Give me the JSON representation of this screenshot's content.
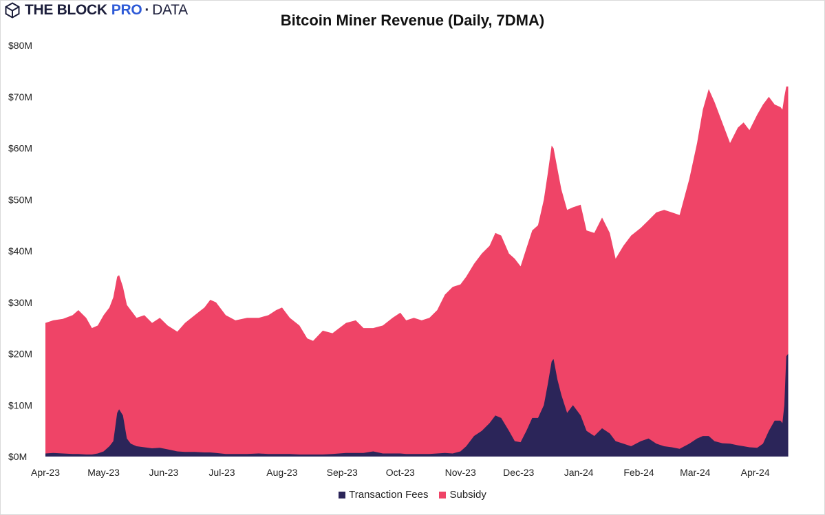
{
  "brand": {
    "name": "THE BLOCK",
    "pro": "PRO",
    "dot": "·",
    "data": "DATA",
    "icon": "hexagon-cube-icon"
  },
  "chart_data": {
    "type": "area",
    "stacked": true,
    "title": "Bitcoin Miner Revenue (Daily, 7DMA)",
    "xlabel": "",
    "ylabel": "",
    "ylim": [
      0,
      80
    ],
    "y_unit": "$M",
    "y_ticks": [
      "$0M",
      "$10M",
      "$20M",
      "$30M",
      "$40M",
      "$50M",
      "$60M",
      "$70M",
      "$80M"
    ],
    "x_ticks": [
      "Apr-23",
      "May-23",
      "Jun-23",
      "Jul-23",
      "Aug-23",
      "Sep-23",
      "Oct-23",
      "Nov-23",
      "Dec-23",
      "Jan-24",
      "Feb-24",
      "Mar-24",
      "Apr-24"
    ],
    "x_range": [
      "2023-04-01",
      "2024-04-21"
    ],
    "legend_position": "bottom",
    "grid": false,
    "points": [
      [
        "2023-04-01",
        26.0,
        0.6
      ],
      [
        "2023-04-05",
        26.5,
        0.7
      ],
      [
        "2023-04-10",
        26.8,
        0.6
      ],
      [
        "2023-04-15",
        27.5,
        0.5
      ],
      [
        "2023-04-18",
        28.5,
        0.5
      ],
      [
        "2023-04-22",
        27.0,
        0.4
      ],
      [
        "2023-04-25",
        25.0,
        0.4
      ],
      [
        "2023-04-28",
        25.5,
        0.6
      ],
      [
        "2023-05-01",
        27.5,
        1.0
      ],
      [
        "2023-05-04",
        29.0,
        2.0
      ],
      [
        "2023-05-06",
        31.0,
        3.0
      ],
      [
        "2023-05-08",
        35.0,
        8.5
      ],
      [
        "2023-05-09",
        35.3,
        9.2
      ],
      [
        "2023-05-11",
        33.0,
        8.0
      ],
      [
        "2023-05-13",
        29.5,
        3.5
      ],
      [
        "2023-05-15",
        28.5,
        2.5
      ],
      [
        "2023-05-18",
        27.0,
        2.0
      ],
      [
        "2023-05-22",
        27.5,
        1.8
      ],
      [
        "2023-05-26",
        26.0,
        1.6
      ],
      [
        "2023-05-30",
        27.0,
        1.7
      ],
      [
        "2023-06-03",
        25.5,
        1.4
      ],
      [
        "2023-06-08",
        24.3,
        1.0
      ],
      [
        "2023-06-12",
        26.0,
        0.9
      ],
      [
        "2023-06-17",
        27.5,
        0.9
      ],
      [
        "2023-06-22",
        29.0,
        0.8
      ],
      [
        "2023-06-25",
        30.5,
        0.8
      ],
      [
        "2023-06-28",
        30.0,
        0.7
      ],
      [
        "2023-07-03",
        27.5,
        0.5
      ],
      [
        "2023-07-08",
        26.5,
        0.5
      ],
      [
        "2023-07-14",
        27.0,
        0.5
      ],
      [
        "2023-07-20",
        27.0,
        0.6
      ],
      [
        "2023-07-25",
        27.5,
        0.5
      ],
      [
        "2023-07-29",
        28.5,
        0.5
      ],
      [
        "2023-08-01",
        29.0,
        0.5
      ],
      [
        "2023-08-05",
        27.0,
        0.5
      ],
      [
        "2023-08-10",
        25.5,
        0.4
      ],
      [
        "2023-08-14",
        23.0,
        0.4
      ],
      [
        "2023-08-17",
        22.5,
        0.4
      ],
      [
        "2023-08-22",
        24.5,
        0.4
      ],
      [
        "2023-08-27",
        24.0,
        0.5
      ],
      [
        "2023-09-03",
        26.0,
        0.7
      ],
      [
        "2023-09-08",
        26.5,
        0.7
      ],
      [
        "2023-09-12",
        25.0,
        0.7
      ],
      [
        "2023-09-17",
        25.0,
        1.0
      ],
      [
        "2023-09-22",
        25.5,
        0.6
      ],
      [
        "2023-09-27",
        27.0,
        0.6
      ],
      [
        "2023-10-01",
        28.0,
        0.6
      ],
      [
        "2023-10-04",
        26.5,
        0.5
      ],
      [
        "2023-10-08",
        27.0,
        0.5
      ],
      [
        "2023-10-12",
        26.5,
        0.5
      ],
      [
        "2023-10-16",
        27.0,
        0.5
      ],
      [
        "2023-10-20",
        28.5,
        0.6
      ],
      [
        "2023-10-24",
        31.5,
        0.7
      ],
      [
        "2023-10-28",
        33.0,
        0.6
      ],
      [
        "2023-11-01",
        33.5,
        1.0
      ],
      [
        "2023-11-04",
        35.0,
        2.0
      ],
      [
        "2023-11-08",
        37.5,
        4.0
      ],
      [
        "2023-11-12",
        39.5,
        5.0
      ],
      [
        "2023-11-16",
        41.0,
        6.5
      ],
      [
        "2023-11-19",
        43.5,
        8.0
      ],
      [
        "2023-11-22",
        43.0,
        7.5
      ],
      [
        "2023-11-26",
        39.5,
        5.0
      ],
      [
        "2023-11-29",
        38.5,
        3.0
      ],
      [
        "2023-12-02",
        37.0,
        2.8
      ],
      [
        "2023-12-05",
        40.5,
        5.0
      ],
      [
        "2023-12-08",
        44.0,
        7.5
      ],
      [
        "2023-12-11",
        45.0,
        7.5
      ],
      [
        "2023-12-14",
        50.0,
        10.0
      ],
      [
        "2023-12-16",
        55.0,
        14.0
      ],
      [
        "2023-12-18",
        60.5,
        18.5
      ],
      [
        "2023-12-19",
        60.0,
        19.0
      ],
      [
        "2023-12-21",
        56.0,
        15.0
      ],
      [
        "2023-12-23",
        52.0,
        12.0
      ],
      [
        "2023-12-26",
        48.0,
        8.5
      ],
      [
        "2023-12-29",
        48.5,
        10.0
      ],
      [
        "2024-01-02",
        49.0,
        8.0
      ],
      [
        "2024-01-05",
        44.0,
        5.0
      ],
      [
        "2024-01-09",
        43.5,
        4.0
      ],
      [
        "2024-01-13",
        46.5,
        5.5
      ],
      [
        "2024-01-17",
        43.5,
        4.5
      ],
      [
        "2024-01-20",
        38.5,
        3.0
      ],
      [
        "2024-01-24",
        41.0,
        2.5
      ],
      [
        "2024-01-28",
        43.0,
        2.0
      ],
      [
        "2024-02-02",
        44.5,
        3.0
      ],
      [
        "2024-02-06",
        46.0,
        3.5
      ],
      [
        "2024-02-10",
        47.5,
        2.5
      ],
      [
        "2024-02-14",
        48.0,
        2.0
      ],
      [
        "2024-02-18",
        47.5,
        1.8
      ],
      [
        "2024-02-22",
        47.0,
        1.5
      ],
      [
        "2024-02-27",
        54.0,
        2.5
      ],
      [
        "2024-03-02",
        61.0,
        3.5
      ],
      [
        "2024-03-05",
        67.5,
        4.0
      ],
      [
        "2024-03-08",
        71.5,
        4.0
      ],
      [
        "2024-03-11",
        69.0,
        3.0
      ],
      [
        "2024-03-15",
        65.0,
        2.6
      ],
      [
        "2024-03-19",
        61.0,
        2.5
      ],
      [
        "2024-03-23",
        64.0,
        2.2
      ],
      [
        "2024-03-26",
        65.0,
        2.0
      ],
      [
        "2024-03-29",
        63.5,
        1.8
      ],
      [
        "2024-04-02",
        66.5,
        1.7
      ],
      [
        "2024-04-05",
        68.5,
        2.5
      ],
      [
        "2024-04-08",
        70.0,
        5.0
      ],
      [
        "2024-04-11",
        68.5,
        7.0
      ],
      [
        "2024-04-14",
        68.0,
        7.0
      ],
      [
        "2024-04-15",
        67.5,
        6.5
      ],
      [
        "2024-04-16",
        70.0,
        10.0
      ],
      [
        "2024-04-17",
        72.0,
        19.5
      ],
      [
        "2024-04-18",
        72.0,
        20.0
      ]
    ],
    "series": [
      {
        "name": "Transaction Fees",
        "color": "#2b2559"
      },
      {
        "name": "Subsidy",
        "color": "#ef4467"
      }
    ]
  }
}
